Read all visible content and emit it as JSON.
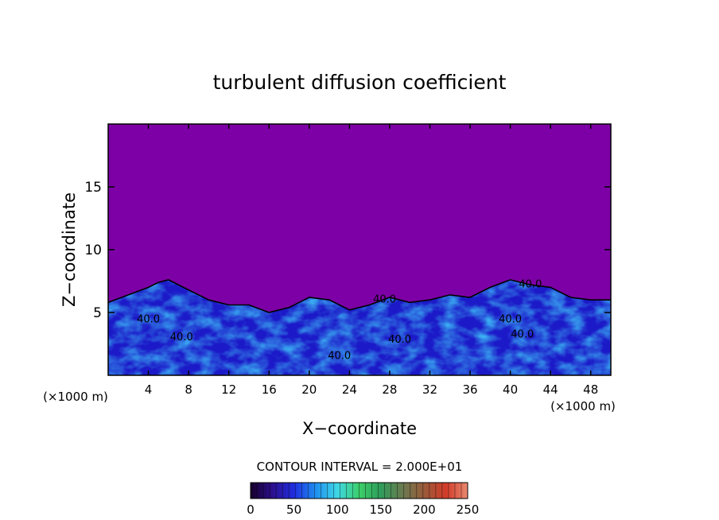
{
  "chart_data": {
    "type": "heatmap",
    "title": "turbulent diffusion coefficient",
    "xlabel": "X−coordinate",
    "ylabel": "Z−coordinate",
    "x_unit_left": "(×1000 m)",
    "x_unit_right": "(×1000 m)",
    "xlim": [
      0,
      50
    ],
    "ylim": [
      0,
      20
    ],
    "x_ticks": [
      4,
      8,
      12,
      16,
      20,
      24,
      28,
      32,
      36,
      40,
      44,
      48
    ],
    "y_ticks": [
      5,
      10,
      15
    ],
    "background_color": "#7d00a6",
    "contour_interval_label": "CONTOUR INTERVAL = 2.000E+01",
    "contour_labels": [
      {
        "text": "40.0",
        "x": 4.0,
        "z": 4.2
      },
      {
        "text": "40.0",
        "x": 7.3,
        "z": 2.8
      },
      {
        "text": "40.0",
        "x": 27.5,
        "z": 5.8
      },
      {
        "text": "40.0",
        "x": 23.0,
        "z": 1.3
      },
      {
        "text": "40.0",
        "x": 29.0,
        "z": 2.6
      },
      {
        "text": "40.0",
        "x": 40.0,
        "z": 4.2
      },
      {
        "text": "40.0",
        "x": 41.2,
        "z": 3.0
      },
      {
        "text": "40.0",
        "x": 42.0,
        "z": 7.0
      }
    ],
    "turbulent_top_profile": {
      "x": [
        0,
        2,
        4,
        5,
        6,
        8,
        10,
        12,
        14,
        16,
        18,
        20,
        22,
        24,
        26,
        28,
        30,
        32,
        34,
        36,
        38,
        40,
        42,
        44,
        46,
        48,
        50
      ],
      "z": [
        5.8,
        6.4,
        7.0,
        7.4,
        7.6,
        6.8,
        6.0,
        5.6,
        5.6,
        5.0,
        5.4,
        6.2,
        6.0,
        5.2,
        5.6,
        6.2,
        5.8,
        6.0,
        6.4,
        6.2,
        7.0,
        7.6,
        7.2,
        7.0,
        6.2,
        6.0,
        6.0
      ]
    },
    "colorbar": {
      "range": [
        0,
        250
      ],
      "ticks": [
        "0",
        "50",
        "100",
        "150",
        "200",
        "250"
      ],
      "colors": [
        "#16002a",
        "#2c0f8c",
        "#1f2de0",
        "#1f8ff0",
        "#3fd6e6",
        "#3cd06a",
        "#2f9b5a",
        "#6a7a50",
        "#9a5a3a",
        "#d33b2a",
        "#e88a70"
      ]
    }
  }
}
